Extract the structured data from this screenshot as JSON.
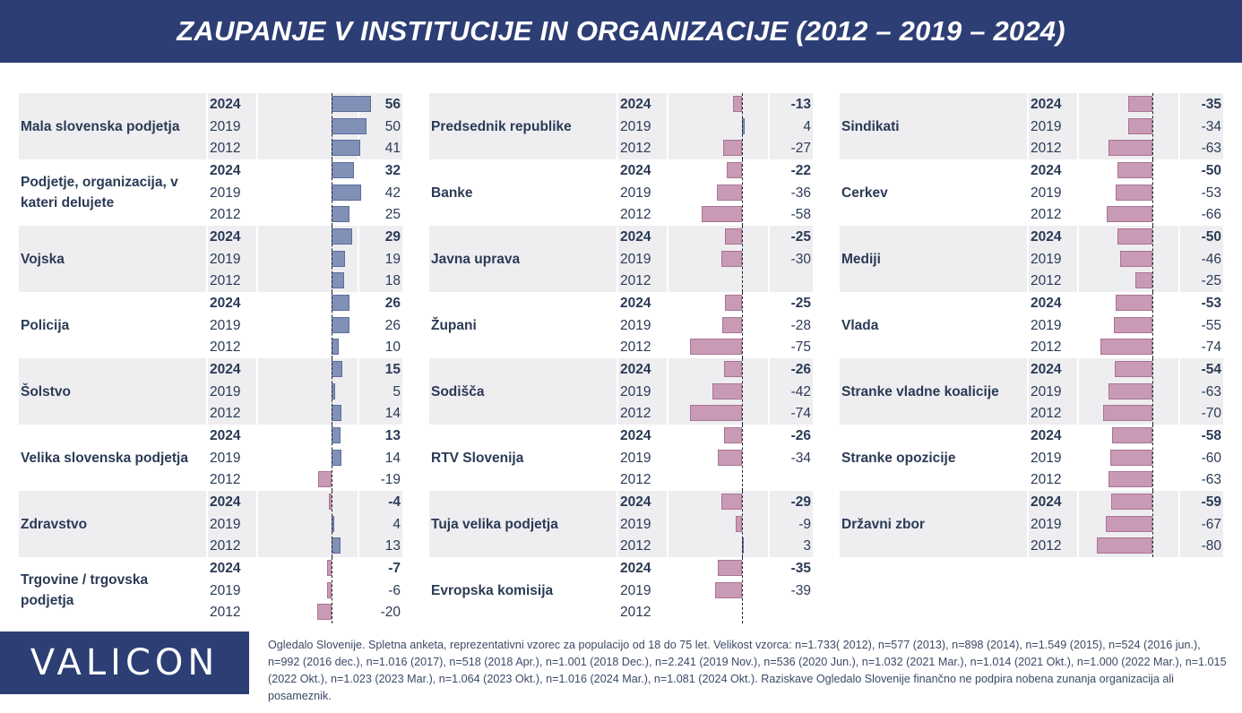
{
  "header": {
    "title": "ZAUPANJE V INSTITUCIJE IN ORGANIZACIJE (2012 – 2019 – 2024)"
  },
  "logo": {
    "text": "VALICON"
  },
  "footnote": "Ogledalo Slovenije. Spletna anketa, reprezentativni vzorec za populacijo od 18 do 75 let. Velikost vzorca: n=1.733( 2012), n=577 (2013), n=898 (2014), n=1.549 (2015), n=524 (2016 jun.), n=992 (2016 dec.), n=1.016 (2017), n=518 (2018 Apr.), n=1.001 (2018 Dec.), n=2.241 (2019 Nov.), n=536 (2020 Jun.), n=1.032 (2021 Mar.), n=1.014 (2021 Okt.), n=1.000 (2022 Mar.), n=1.015 (2022 Okt.), n=1.023 (2023 Mar.), n=1.064 (2023 Okt.), n=1.016 (2024 Mar.), n=1.081 (2024 Okt.). Raziskave Ogledalo Slovenije finančno ne podpira nobena zunanja organizacija ali posameznik.",
  "colors": {
    "positive": "#8190b6",
    "negative": "#c99ab6",
    "header": "#2c3e74",
    "shade": "#eeeef1"
  },
  "chart_data": {
    "type": "bar",
    "orientation": "horizontal",
    "title": "ZAUPANJE V INSTITUCIJE IN ORGANIZACIJE (2012 – 2019 – 2024)",
    "years": [
      "2024",
      "2019",
      "2012"
    ],
    "columns": [
      [
        {
          "name": "Mala slovenska podjetja",
          "values": [
            56,
            50,
            41
          ]
        },
        {
          "name": "Podjetje, organizacija, v kateri delujete",
          "values": [
            32,
            42,
            25
          ]
        },
        {
          "name": "Vojska",
          "values": [
            29,
            19,
            18
          ]
        },
        {
          "name": "Policija",
          "values": [
            26,
            26,
            10
          ]
        },
        {
          "name": "Šolstvo",
          "values": [
            15,
            5,
            14
          ]
        },
        {
          "name": "Velika slovenska podjetja",
          "values": [
            13,
            14,
            -19
          ]
        },
        {
          "name": "Zdravstvo",
          "values": [
            -4,
            4,
            13
          ]
        },
        {
          "name": "Trgovine / trgovska podjetja",
          "values": [
            -7,
            -6,
            -20
          ]
        }
      ],
      [
        {
          "name": "Predsednik republike",
          "values": [
            -13,
            4,
            -27
          ]
        },
        {
          "name": "Banke",
          "values": [
            -22,
            -36,
            -58
          ]
        },
        {
          "name": "Javna uprava",
          "values": [
            -25,
            -30,
            null
          ]
        },
        {
          "name": "Župani",
          "values": [
            -25,
            -28,
            -75
          ]
        },
        {
          "name": "Sodišča",
          "values": [
            -26,
            -42,
            -74
          ]
        },
        {
          "name": "RTV Slovenija",
          "values": [
            -26,
            -34,
            null
          ]
        },
        {
          "name": "Tuja velika podjetja",
          "values": [
            -29,
            -9,
            3
          ]
        },
        {
          "name": "Evropska komisija",
          "values": [
            -35,
            -39,
            null
          ]
        }
      ],
      [
        {
          "name": "Sindikati",
          "values": [
            -35,
            -34,
            -63
          ]
        },
        {
          "name": "Cerkev",
          "values": [
            -50,
            -53,
            -66
          ]
        },
        {
          "name": "Mediji",
          "values": [
            -50,
            -46,
            -25
          ]
        },
        {
          "name": "Vlada",
          "values": [
            -53,
            -55,
            -74
          ]
        },
        {
          "name": "Stranke vladne koalicije",
          "values": [
            -54,
            -63,
            -70
          ]
        },
        {
          "name": "Stranke opozicije",
          "values": [
            -58,
            -60,
            -63
          ]
        },
        {
          "name": "Državni zbor",
          "values": [
            -59,
            -67,
            -80
          ]
        }
      ]
    ]
  }
}
